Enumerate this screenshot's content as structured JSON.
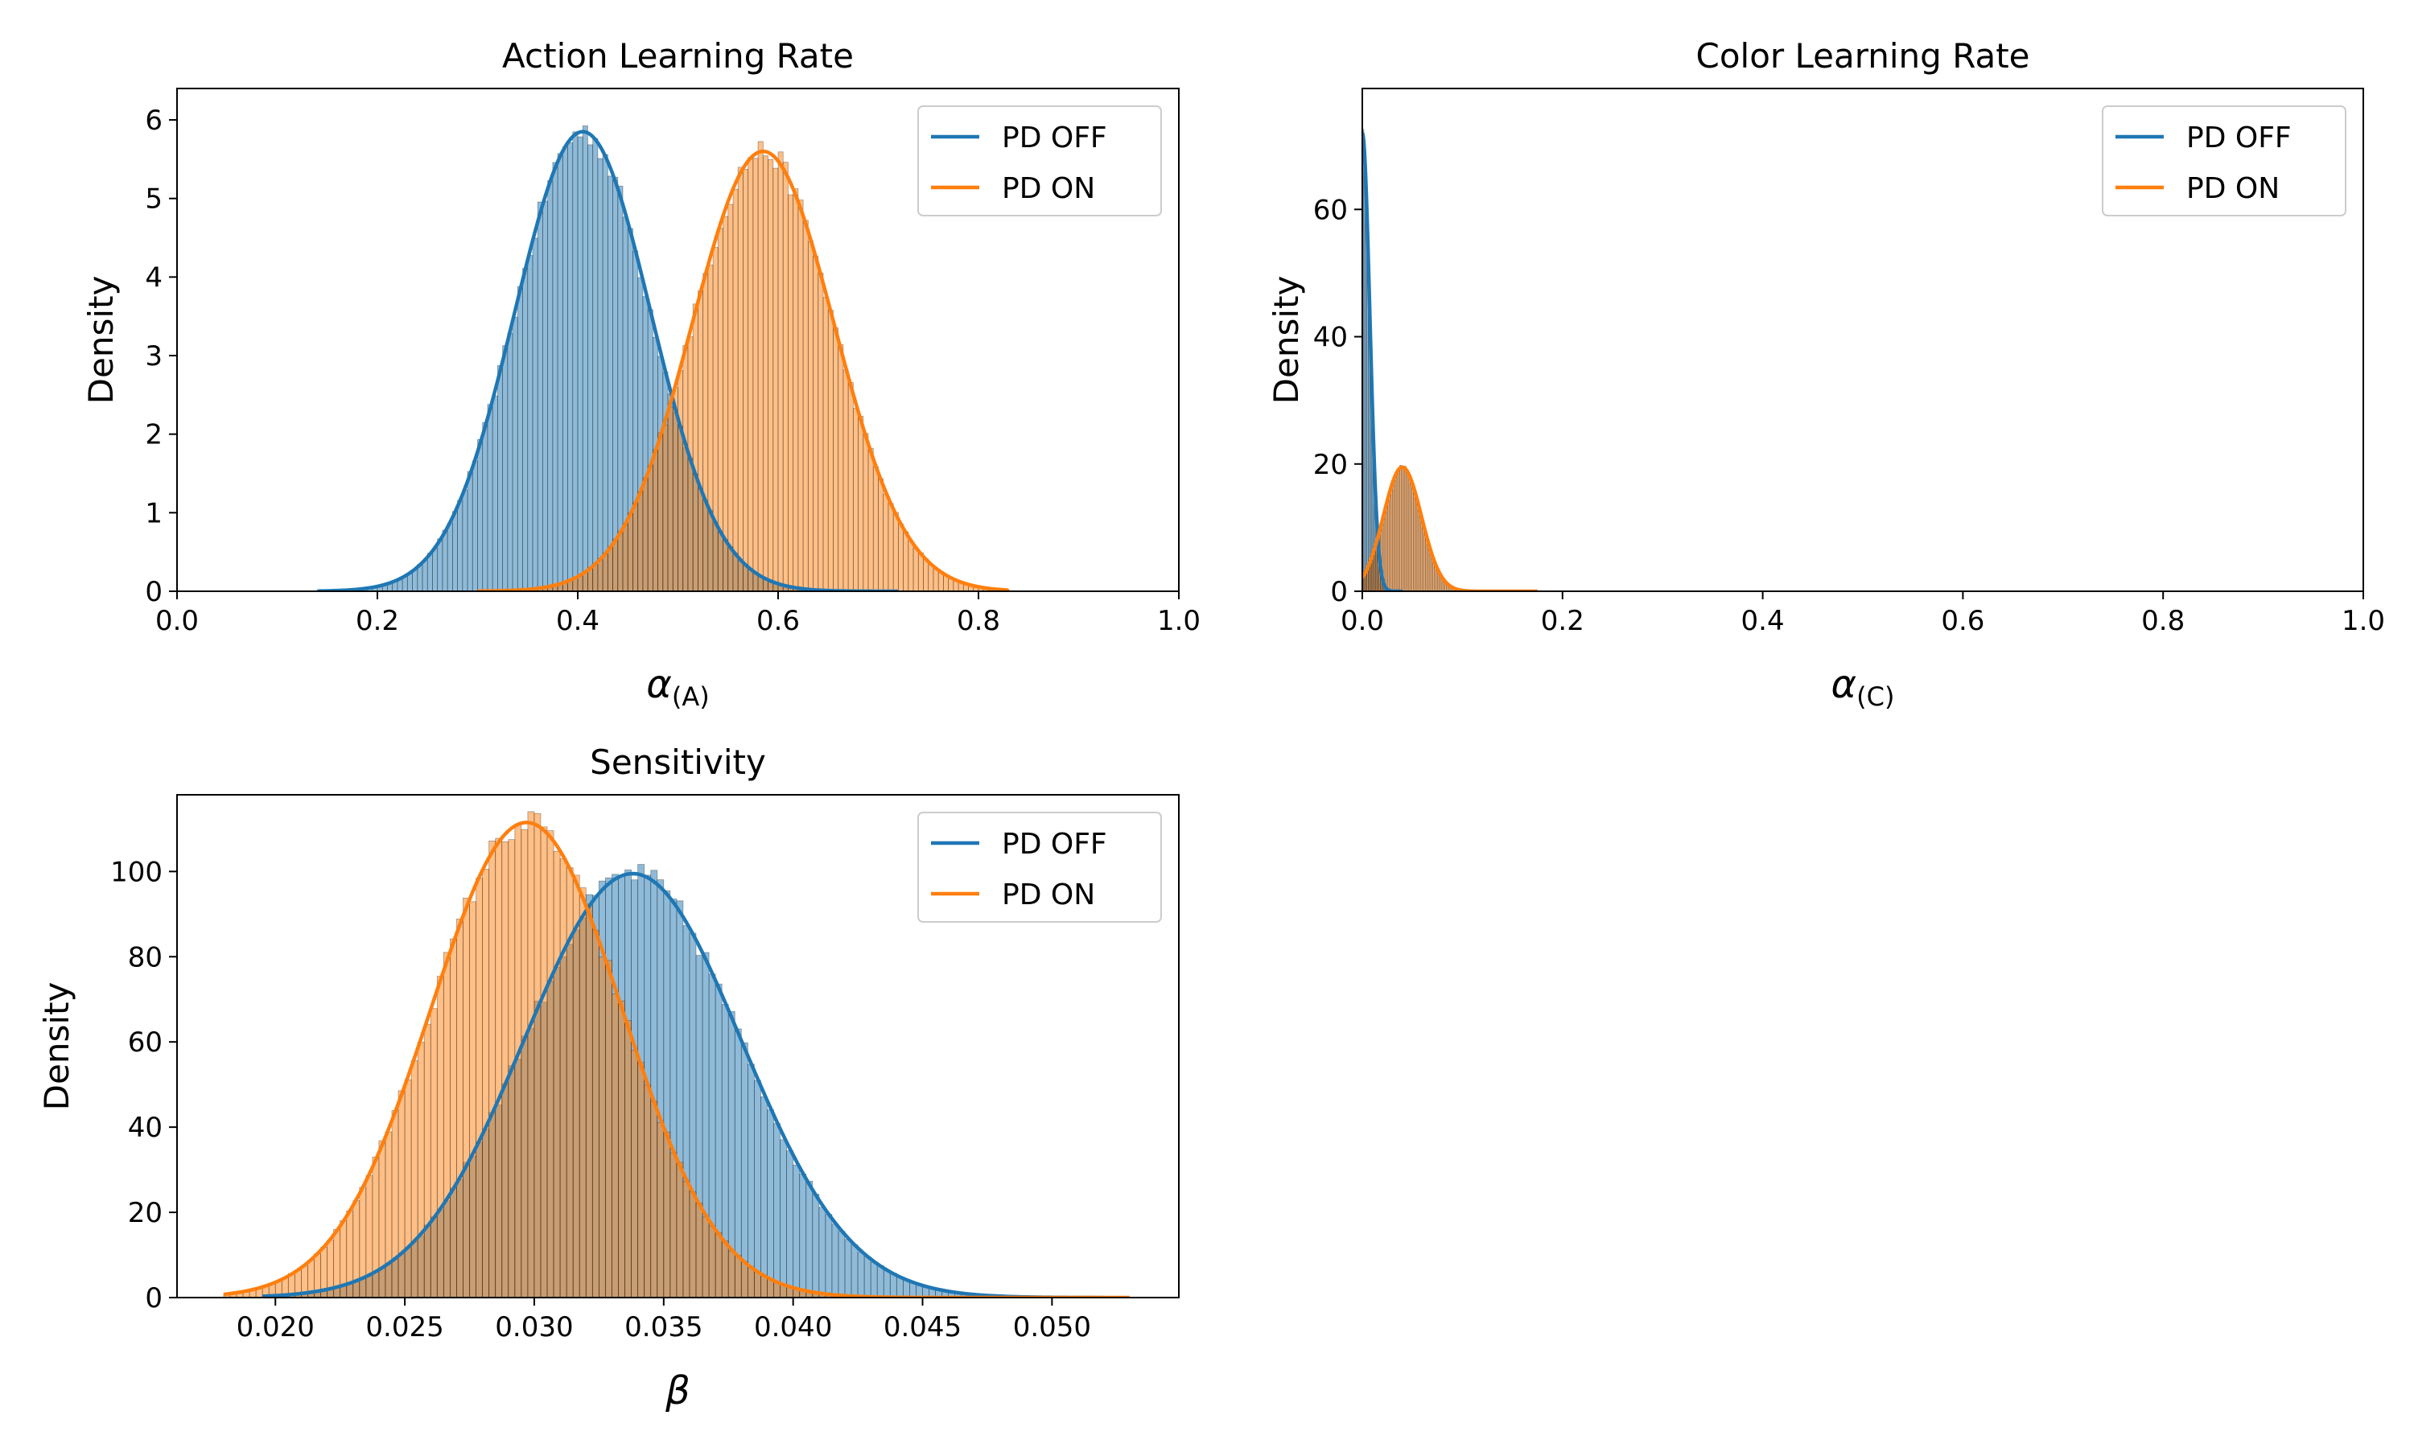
{
  "colors": {
    "pd_off": "#1f77b4",
    "pd_on": "#ff7f0e"
  },
  "chart_data": [
    {
      "type": "histogram+kde",
      "title": "Action Learning Rate",
      "xlabel": "α",
      "xlabel_sub": "(A)",
      "ylabel": "Density",
      "xlim": [
        0.0,
        1.0
      ],
      "ylim": [
        0,
        6.4
      ],
      "xticks": [
        "0.0",
        "0.2",
        "0.4",
        "0.6",
        "0.8",
        "1.0"
      ],
      "yticks": [
        "0",
        "1",
        "2",
        "3",
        "4",
        "5",
        "6"
      ],
      "legend_position": "top-right",
      "series": [
        {
          "name": "PD OFF",
          "color": "#1f77b4",
          "distribution": "normal",
          "mean": 0.405,
          "sd": 0.068,
          "peak_density": 5.85,
          "support": [
            0.14,
            0.72
          ],
          "bin_width": 0.005
        },
        {
          "name": "PD ON",
          "color": "#ff7f0e",
          "distribution": "normal",
          "mean": 0.585,
          "sd": 0.071,
          "peak_density": 5.6,
          "support": [
            0.3,
            0.83
          ],
          "bin_width": 0.005
        }
      ]
    },
    {
      "type": "histogram+kde",
      "title": "Color Learning Rate",
      "xlabel": "α",
      "xlabel_sub": "(C)",
      "ylabel": "Density",
      "xlim": [
        0.0,
        1.0
      ],
      "ylim": [
        0,
        79
      ],
      "xticks": [
        "0.0",
        "0.2",
        "0.4",
        "0.6",
        "0.8",
        "1.0"
      ],
      "yticks": [
        "0",
        "20",
        "40",
        "60"
      ],
      "legend_position": "top-right",
      "series": [
        {
          "name": "PD OFF",
          "color": "#1f77b4",
          "distribution": "half-normal",
          "mode": 0.0,
          "sd": 0.0075,
          "peak_density": 72,
          "support": [
            0.0,
            0.04
          ],
          "bin_width": 0.0015
        },
        {
          "name": "PD ON",
          "color": "#ff7f0e",
          "distribution": "normal",
          "mean": 0.04,
          "sd": 0.019,
          "peak_density": 19.5,
          "support": [
            0.0,
            0.175
          ],
          "bin_width": 0.0015
        }
      ]
    },
    {
      "type": "histogram+kde",
      "title": "Sensitivity",
      "xlabel": "β",
      "xlabel_sub": "",
      "ylabel": "Density",
      "xlim": [
        0.0162,
        0.0549
      ],
      "ylim": [
        0,
        118
      ],
      "xticks": [
        "0.020",
        "0.025",
        "0.030",
        "0.035",
        "0.040",
        "0.045",
        "0.050"
      ],
      "yticks": [
        "0",
        "20",
        "40",
        "60",
        "80",
        "100"
      ],
      "legend_position": "top-right",
      "series": [
        {
          "name": "PD OFF",
          "color": "#1f77b4",
          "distribution": "normal",
          "mean": 0.0338,
          "sd": 0.0042,
          "peak_density": 99.5,
          "support": [
            0.0195,
            0.052
          ],
          "bin_width": 0.00025
        },
        {
          "name": "PD ON",
          "color": "#ff7f0e",
          "distribution": "normal",
          "mean": 0.0297,
          "sd": 0.0037,
          "peak_density": 111.5,
          "support": [
            0.018,
            0.053
          ],
          "bin_width": 0.00025
        }
      ]
    }
  ]
}
